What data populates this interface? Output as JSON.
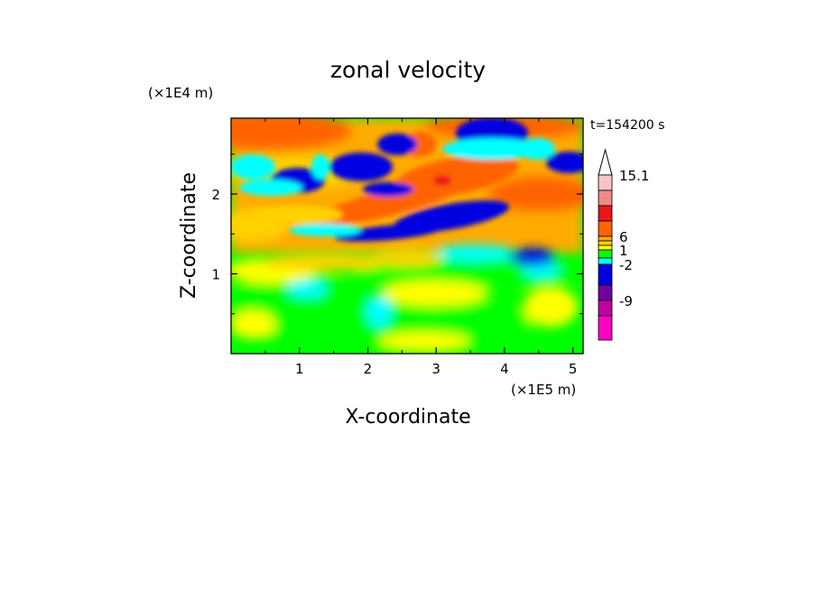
{
  "chart_data": {
    "type": "heatmap",
    "title": "zonal velocity",
    "xlabel": "X-coordinate",
    "ylabel": "Z-coordinate",
    "x_unit": "(×1E5 m)",
    "y_unit": "(×1E4 m)",
    "time_label": "t=154200 s",
    "xlim": [
      0,
      5.15
    ],
    "ylim": [
      0,
      2.95
    ],
    "x_ticks": [
      1,
      2,
      3,
      4,
      5
    ],
    "y_ticks": [
      1,
      2
    ],
    "x_tick_labels": [
      "1",
      "2",
      "3",
      "4",
      "5"
    ],
    "y_tick_labels": [
      "1",
      "2"
    ],
    "colorbar": {
      "open_top": true,
      "levels_top_to_bottom": [
        {
          "color": "#f6c6c6"
        },
        {
          "color": "#f08a8a"
        },
        {
          "color": "#e81818"
        },
        {
          "color": "#ff6400"
        },
        {
          "color": "#ffaa00"
        },
        {
          "color": "#ffd200"
        },
        {
          "color": "#ffff00"
        },
        {
          "color": "#00ff00"
        },
        {
          "color": "#00ffff"
        },
        {
          "color": "#0000e0"
        },
        {
          "color": "#7000a0"
        },
        {
          "color": "#c000a0"
        },
        {
          "color": "#ff00c0"
        }
      ],
      "labels": [
        "15.1",
        "6",
        "1",
        "-2",
        "-9"
      ]
    },
    "grid": false,
    "legend": "colorbar-right"
  }
}
